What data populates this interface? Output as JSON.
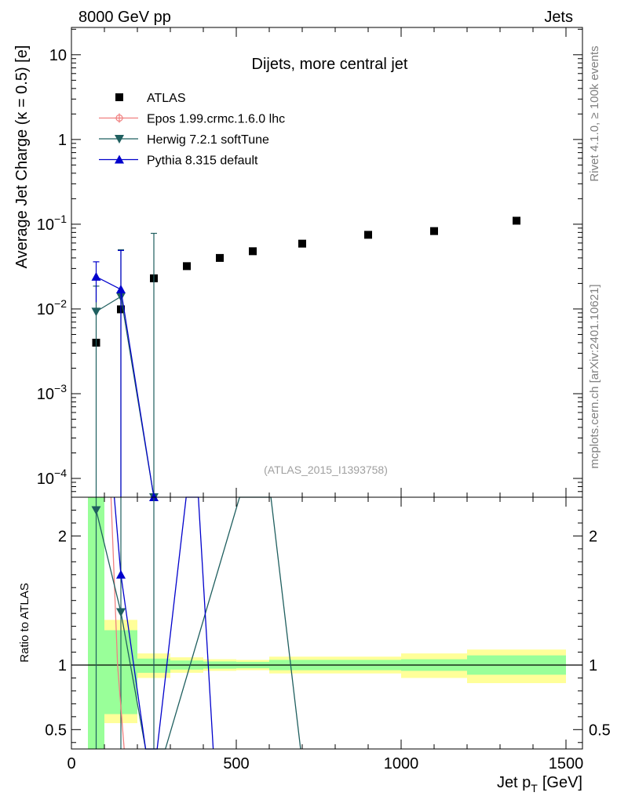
{
  "header": {
    "left": "8000 GeV pp",
    "right": "Jets"
  },
  "side_labels": {
    "rivet": "Rivet 4.1.0, ≥ 100k events",
    "mcplots": "mcplots.cern.ch [arXiv:2401.10621]"
  },
  "chart_data": [
    {
      "type": "scatter",
      "panel": "main",
      "title": "Dijets, more central jet",
      "watermark": "(ATLAS_2015_I1393758)",
      "xlabel_main": "Jet p",
      "xlabel_sub": "T",
      "xlabel_unit": "[GeV]",
      "ylabel": "Average Jet Charge (κ = 0.5) [e]",
      "yscale": "log",
      "xlim": [
        0,
        1550
      ],
      "ylim": [
        6e-05,
        21
      ],
      "y_ticks": [
        {
          "value": 10,
          "base": "10",
          "exp": ""
        },
        {
          "value": 1,
          "base": "1",
          "exp": ""
        },
        {
          "value": 0.1,
          "base": "10",
          "exp": "−1"
        },
        {
          "value": 0.01,
          "base": "10",
          "exp": "−2"
        },
        {
          "value": 0.001,
          "base": "10",
          "exp": "−3"
        },
        {
          "value": 0.0001,
          "base": "10",
          "exp": "−4"
        }
      ],
      "series": [
        {
          "name": "ATLAS",
          "color": "#000000",
          "marker": "square",
          "x": [
            75,
            150,
            250,
            350,
            450,
            550,
            700,
            900,
            1100,
            1350
          ],
          "y": [
            0.004,
            0.0099,
            0.023,
            0.032,
            0.04,
            0.048,
            0.059,
            0.075,
            0.083,
            0.11
          ]
        },
        {
          "name": "Epos 1.99.crmc.1.6.0 lhc",
          "color": "#f08080",
          "marker": "open-circle-cross",
          "x": [],
          "y": []
        },
        {
          "name": "Herwig 7.2.1 softTune",
          "color": "#1f5f5f",
          "marker": "triangle-down",
          "x": [
            75,
            150,
            250
          ],
          "y": [
            0.0093,
            0.014,
            6e-05
          ],
          "err_low": [
            0.0093,
            0.014,
            6e-05
          ],
          "err_high": [
            0.0093,
            0.036,
            0.078
          ]
        },
        {
          "name": "Pythia 8.315 default",
          "color": "#0000cc",
          "marker": "triangle-up",
          "x": [
            75,
            150,
            250
          ],
          "y": [
            0.024,
            0.017,
            6e-05
          ],
          "err_low": [
            0.012,
            0.017,
            6e-05
          ],
          "err_high": [
            0.012,
            0.032,
            0.0
          ]
        }
      ]
    },
    {
      "type": "line",
      "panel": "ratio",
      "ylabel": "Ratio to ATLAS",
      "xlim": [
        0,
        1550
      ],
      "ylim": [
        0.35,
        2.3
      ],
      "x_ticks": [
        0,
        500,
        1000,
        1500
      ],
      "y_ticks": [
        0.5,
        1,
        2
      ],
      "bands": {
        "bin_edges": [
          50,
          100,
          200,
          300,
          400,
          500,
          600,
          800,
          1000,
          1200,
          1500
        ],
        "stat_low": [
          0.0,
          0.62,
          0.94,
          0.965,
          0.972,
          0.975,
          0.96,
          0.96,
          0.955,
          0.925
        ],
        "stat_high": [
          2.3,
          1.27,
          1.05,
          1.035,
          1.028,
          1.025,
          1.04,
          1.04,
          1.045,
          1.075
        ],
        "total_low": [
          0.0,
          0.55,
          0.9,
          0.94,
          0.955,
          0.96,
          0.935,
          0.935,
          0.9,
          0.86
        ],
        "total_high": [
          2.3,
          1.35,
          1.09,
          1.06,
          1.045,
          1.04,
          1.065,
          1.065,
          1.09,
          1.12
        ],
        "stat_color": "#99ff99",
        "total_color": "#ffff99"
      },
      "series": [
        {
          "name": "Epos 1.99.crmc.1.6.0 lhc",
          "color": "#f08080",
          "x": [
            120,
            140,
            160
          ],
          "y": [
            2.3,
            1.0,
            0.35
          ]
        },
        {
          "name": "Herwig 7.2.1 softTune",
          "color": "#1f5f5f",
          "x": [
            75,
            150,
            225,
            285,
            510,
            605,
            695
          ],
          "y": [
            2.2,
            1.41,
            0.35,
            0.35,
            2.3,
            2.3,
            0.35
          ]
        },
        {
          "name": "Pythia 8.315 default",
          "color": "#0000cc",
          "x": [
            130,
            150,
            225,
            260,
            348,
            385,
            430
          ],
          "y": [
            2.3,
            1.7,
            0.35,
            0.35,
            2.3,
            2.3,
            0.35
          ]
        }
      ],
      "markers": [
        {
          "series": "Herwig 7.2.1 softTune",
          "x": 75,
          "y": 2.2,
          "marker": "triangle-down"
        },
        {
          "series": "Herwig 7.2.1 softTune",
          "x": 150,
          "y": 1.41,
          "marker": "triangle-down"
        },
        {
          "series": "Pythia 8.315 default",
          "x": 150,
          "y": 1.7,
          "marker": "triangle-up"
        }
      ],
      "error_bars": [
        {
          "series": "Herwig 7.2.1 softTune",
          "x": 75
        },
        {
          "series": "Herwig 7.2.1 softTune",
          "x": 150
        },
        {
          "series": "Herwig 7.2.1 softTune",
          "x": 250
        }
      ]
    }
  ]
}
